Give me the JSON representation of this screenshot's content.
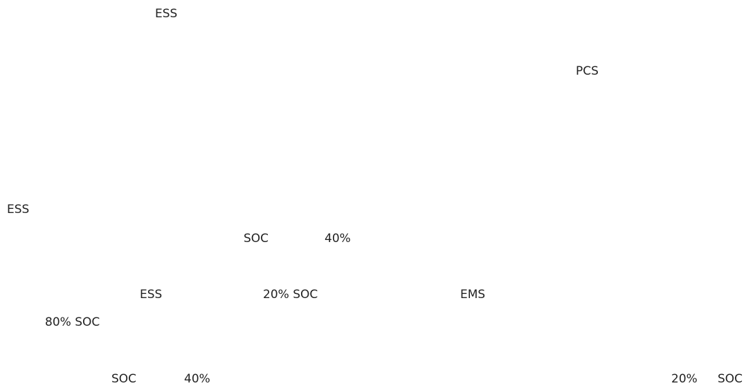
{
  "document": {
    "fragments": {
      "f1": "ESS",
      "f2": "PCS",
      "f3": "ESS",
      "f4": "SOC",
      "f5": "40%",
      "f6": "ESS",
      "f7": "20% SOC",
      "f8": "EMS",
      "f9": "80% SOC",
      "f10": "SOC",
      "f11": "40%",
      "f12": "20%",
      "f13": "SOC"
    }
  }
}
